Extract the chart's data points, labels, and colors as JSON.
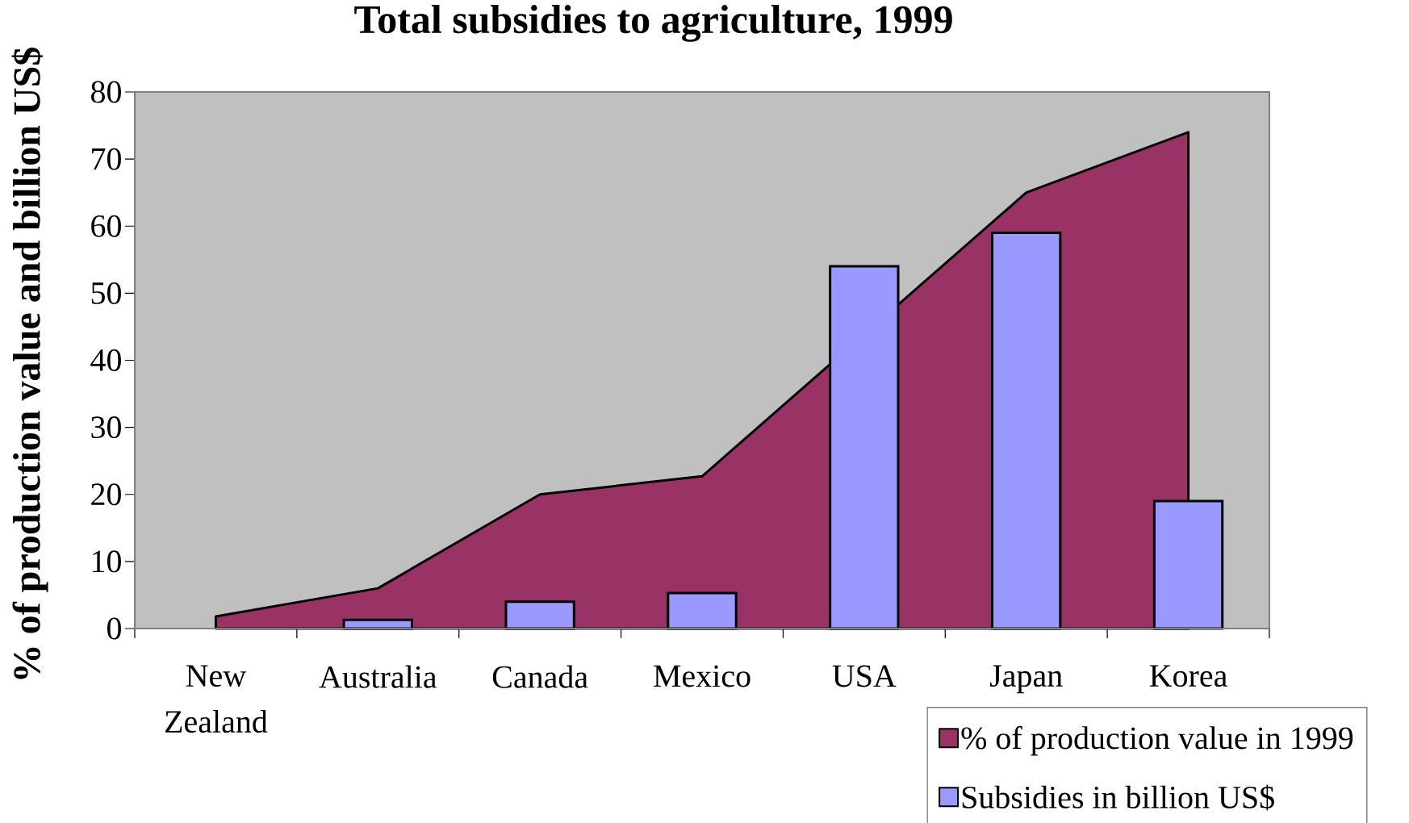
{
  "chart_data": {
    "type": "bar",
    "title": "Total subsidies to agriculture, 1999",
    "ylabel": "% of production value and billion US$",
    "categories": [
      "New Zealand",
      "Australia",
      "Canada",
      "Mexico",
      "USA",
      "Japan",
      "Korea"
    ],
    "series": [
      {
        "name": "% of production value in 1999",
        "type": "area",
        "color": "#993366",
        "values": [
          1.8,
          6,
          20,
          22.7,
          null,
          65,
          74
        ]
      },
      {
        "name": "Subsidies in billion US$",
        "color": "#9999ff",
        "values": [
          null,
          1.3,
          4,
          5.3,
          54,
          59,
          19
        ]
      }
    ],
    "ylim": [
      0,
      80
    ],
    "yticks": [
      0,
      10,
      20,
      30,
      40,
      50,
      60,
      70,
      80
    ],
    "legend": "bottom right"
  }
}
